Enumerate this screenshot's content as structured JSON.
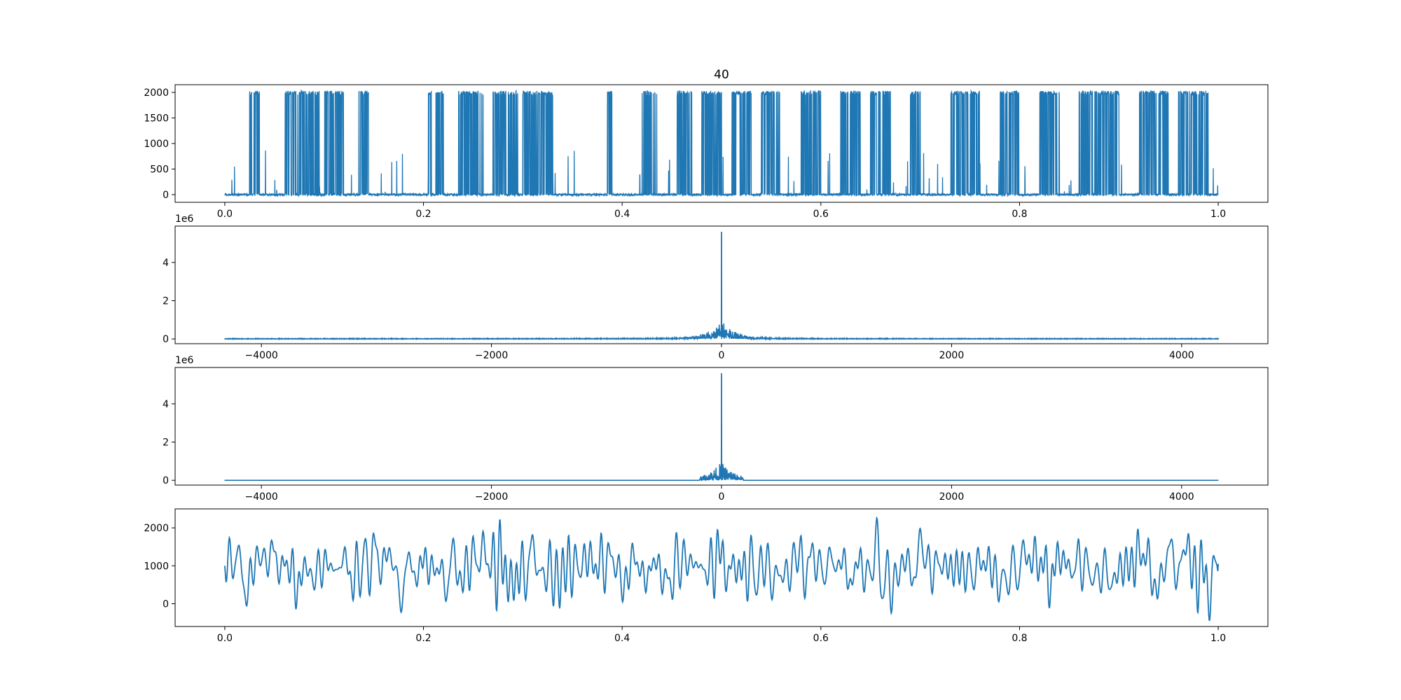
{
  "figure": {
    "title": "40",
    "line_color": "#1f77b4"
  },
  "chart_data": [
    {
      "type": "line",
      "title": "40",
      "xlabel": "",
      "ylabel": "",
      "xlim": [
        -0.05,
        1.05
      ],
      "ylim": [
        -150,
        2150
      ],
      "xticks": [
        0.0,
        0.2,
        0.4,
        0.6,
        0.8,
        1.0
      ],
      "xtick_labels": [
        "0.0",
        "0.2",
        "0.4",
        "0.6",
        "0.8",
        "1.0"
      ],
      "yticks": [
        0,
        500,
        1000,
        1500,
        2000
      ],
      "ytick_labels": [
        "0",
        "500",
        "1000",
        "1500",
        "2000"
      ],
      "offset_label": "",
      "grid": false,
      "description": "binary-like square wave switching between ~0 and ~2000",
      "x_range": [
        0.0,
        1.0
      ],
      "value_range": [
        -30,
        2050
      ],
      "high_bursts": [
        [
          0.025,
          0.035
        ],
        [
          0.06,
          0.095
        ],
        [
          0.1,
          0.12
        ],
        [
          0.135,
          0.145
        ],
        [
          0.205,
          0.22
        ],
        [
          0.235,
          0.26
        ],
        [
          0.27,
          0.295
        ],
        [
          0.3,
          0.33
        ],
        [
          0.385,
          0.39
        ],
        [
          0.42,
          0.435
        ],
        [
          0.455,
          0.47
        ],
        [
          0.48,
          0.5
        ],
        [
          0.51,
          0.53
        ],
        [
          0.54,
          0.56
        ],
        [
          0.58,
          0.6
        ],
        [
          0.62,
          0.64
        ],
        [
          0.65,
          0.67
        ],
        [
          0.69,
          0.7
        ],
        [
          0.73,
          0.76
        ],
        [
          0.78,
          0.8
        ],
        [
          0.82,
          0.84
        ],
        [
          0.86,
          0.9
        ],
        [
          0.92,
          0.95
        ],
        [
          0.96,
          0.99
        ]
      ]
    },
    {
      "type": "line",
      "title": "",
      "xlabel": "",
      "ylabel": "",
      "xlim": [
        -4750,
        4750
      ],
      "ylim": [
        -0.25,
        5.9
      ],
      "xticks": [
        -4000,
        -2000,
        0,
        2000,
        4000
      ],
      "xtick_labels": [
        "−4000",
        "−2000",
        "0",
        "2000",
        "4000"
      ],
      "yticks": [
        0,
        2,
        4
      ],
      "ytick_labels": [
        "0",
        "2",
        "4"
      ],
      "offset_label": "1e6",
      "grid": false,
      "description": "FFT magnitude spectrum, sharp peak at 0",
      "x_range": [
        -4320,
        4320
      ],
      "peak": {
        "x": 0,
        "y": 5.6
      },
      "side_lobe_max": 0.95,
      "floor": 0.02
    },
    {
      "type": "line",
      "title": "",
      "xlabel": "",
      "ylabel": "",
      "xlim": [
        -4750,
        4750
      ],
      "ylim": [
        -0.25,
        5.9
      ],
      "xticks": [
        -4000,
        -2000,
        0,
        2000,
        4000
      ],
      "xtick_labels": [
        "−4000",
        "−2000",
        "0",
        "2000",
        "4000"
      ],
      "yticks": [
        0,
        2,
        4
      ],
      "ytick_labels": [
        "0",
        "2",
        "4"
      ],
      "offset_label": "1e6",
      "grid": false,
      "description": "low-pass filtered spectrum, nonzero only within about ±190 Hz",
      "x_range": [
        -4320,
        4320
      ],
      "passband": [
        -190,
        190
      ],
      "peak": {
        "x": 0,
        "y": 5.6
      },
      "side_lobe_max": 0.95,
      "floor": 0.0
    },
    {
      "type": "line",
      "title": "",
      "xlabel": "",
      "ylabel": "",
      "xlim": [
        -0.05,
        1.05
      ],
      "ylim": [
        -600,
        2500
      ],
      "xticks": [
        0.0,
        0.2,
        0.4,
        0.6,
        0.8,
        1.0
      ],
      "xtick_labels": [
        "0.0",
        "0.2",
        "0.4",
        "0.6",
        "0.8",
        "1.0"
      ],
      "yticks": [
        0,
        1000,
        2000
      ],
      "ytick_labels": [
        "0",
        "1000",
        "2000"
      ],
      "offset_label": "",
      "grid": false,
      "description": "smooth reconstructed signal after inverse FFT",
      "x_range": [
        0.0,
        1.0
      ],
      "value_range": [
        -450,
        2260
      ],
      "start_value": 1000,
      "end_value": 1050
    }
  ]
}
